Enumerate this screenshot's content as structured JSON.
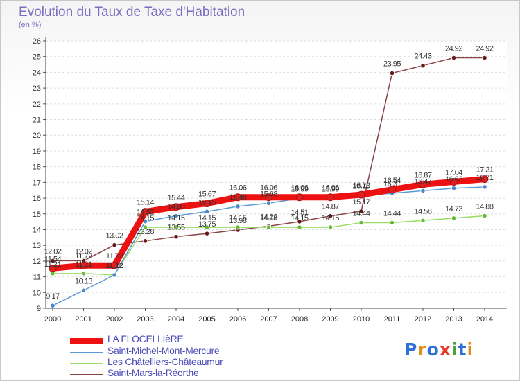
{
  "title": "Evolution du Taux de Taxe d'Habitation",
  "subtitle": "(en %)",
  "logo": {
    "text": [
      "P",
      "r",
      "o",
      "x",
      "i",
      "t",
      "i"
    ],
    "colors": [
      "#2f6fd8",
      "#e88a1a",
      "#2f6fd8",
      "#e83a2a",
      "#4aa03a",
      "#2f6fd8",
      "#e88a1a"
    ]
  },
  "chart_data": {
    "type": "line",
    "x": [
      "2000",
      "2001",
      "2002",
      "2003",
      "2004",
      "2005",
      "2006",
      "2007",
      "2008",
      "2009",
      "2010",
      "2011",
      "2012",
      "2013",
      "2014"
    ],
    "ylim": [
      9,
      26
    ],
    "yticks": [
      9,
      10,
      11,
      12,
      13,
      14,
      15,
      16,
      17,
      18,
      19,
      20,
      21,
      22,
      23,
      24,
      25,
      26
    ],
    "grid": true,
    "legend_position": "bottom-left",
    "series": [
      {
        "name": "LA FLOCELLIèRE",
        "color": "#ee1111",
        "marker": "#e02020",
        "values": [
          11.54,
          11.72,
          11.72,
          15.14,
          15.44,
          15.67,
          16.06,
          16.06,
          16.06,
          16.06,
          16.22,
          16.54,
          16.87,
          17.04,
          17.21
        ],
        "labels": [
          "11.54",
          "11.72",
          "11.72",
          "15.14",
          "15.44",
          "15.67",
          "16.06",
          "16.06",
          "16.06",
          "16.06",
          "16.22",
          "16.54",
          "16.87",
          "17.04",
          "17.21"
        ]
      },
      {
        "name": "Saint-Michel-Mont-Mercure",
        "color": "#5b9bd5",
        "marker": "#4a88c8",
        "values": [
          9.17,
          10.13,
          11.12,
          14.52,
          14.88,
          15.15,
          15.48,
          15.68,
          15.99,
          15.99,
          16.15,
          16.31,
          16.47,
          16.63,
          16.71
        ],
        "labels": [
          "9.17",
          "10.13",
          "11.12",
          "14.52",
          "14.88",
          "15.15",
          "15.48",
          "15.68",
          "15.99",
          "15.99",
          "16.15",
          "16.31",
          "16.47",
          "16.63",
          "16.71"
        ]
      },
      {
        "name": "Les Châtelliers-Châteaumur",
        "color": "#99dd66",
        "marker": "#66bb33",
        "values": [
          11.21,
          11.21,
          11.12,
          14.15,
          14.15,
          14.15,
          14.15,
          14.15,
          14.15,
          14.15,
          14.44,
          14.44,
          14.58,
          14.73,
          14.88
        ],
        "labels": [
          "11.21",
          "11.21",
          "11.12",
          "14.15",
          "14.15",
          "14.15",
          "14.15",
          "14.15",
          "14.15",
          "14.15",
          "14.44",
          "14.44",
          "14.58",
          "14.73",
          "14.88"
        ]
      },
      {
        "name": "Saint-Mars-la-Réorthe",
        "color": "#884444",
        "marker": "#661a1a",
        "values": [
          12.02,
          12.02,
          13.02,
          13.28,
          13.55,
          13.75,
          13.98,
          14.22,
          14.51,
          14.87,
          15.17,
          23.95,
          24.43,
          24.92,
          24.92
        ],
        "labels": [
          "12.02",
          "12.02",
          "13.02",
          "13.28",
          "13.55",
          "13.75",
          "13.98",
          "14.22",
          "14.51",
          "14.87",
          "15.17",
          "23.95",
          "24.43",
          "24.92",
          "24.92"
        ]
      }
    ]
  }
}
